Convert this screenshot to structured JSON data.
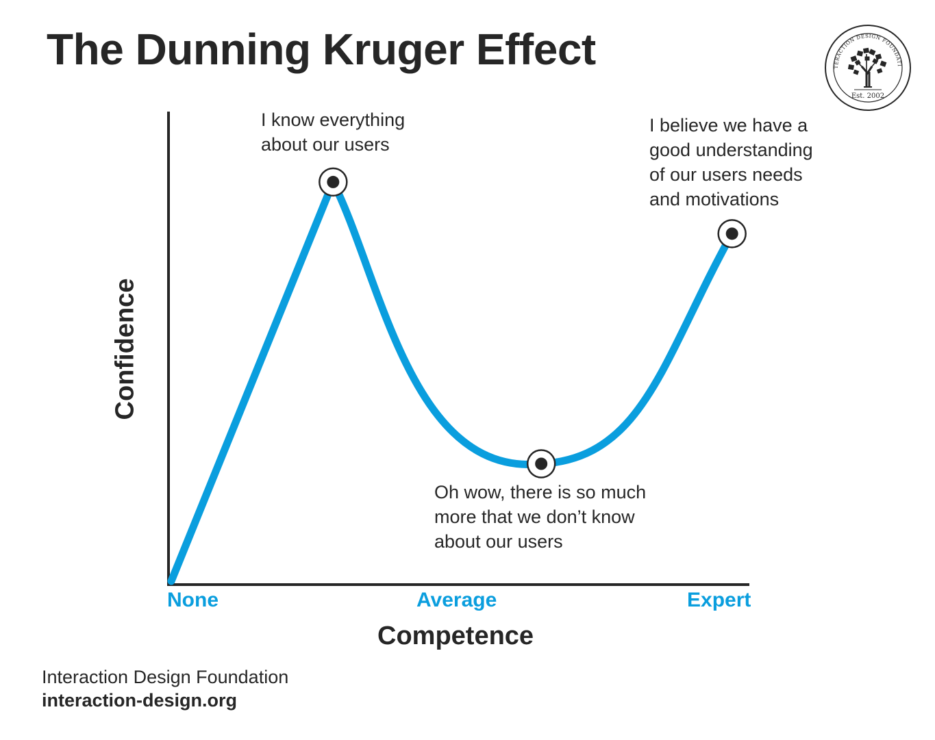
{
  "title": "The Dunning Kruger Effect",
  "logo": {
    "ring_text": "INTERACTION DESIGN FOUNDATION",
    "est_text": "Est. 2002"
  },
  "chart_data": {
    "type": "line",
    "xlabel": "Competence",
    "ylabel": "Confidence",
    "x_ticks": [
      "None",
      "Average",
      "Expert"
    ],
    "xlim": [
      0,
      100
    ],
    "ylim": [
      0,
      100
    ],
    "grid": false,
    "curve_color": "#0a9ede",
    "axis_color": "#262626",
    "points": [
      {
        "x": 0,
        "y": 0
      },
      {
        "x": 28,
        "y": 85
      },
      {
        "x": 64,
        "y": 25
      },
      {
        "x": 97,
        "y": 74
      }
    ],
    "annotations": [
      {
        "id": "peak",
        "x": 28,
        "y": 85,
        "text": "I know everything\nabout our users"
      },
      {
        "id": "valley",
        "x": 64,
        "y": 25,
        "text": "Oh wow, there is so much\nmore that we don’t know\nabout our users"
      },
      {
        "id": "expert",
        "x": 97,
        "y": 74,
        "text": "I believe we have a\ngood understanding\nof our users needs\nand motivations"
      }
    ]
  },
  "footer": {
    "organization": "Interaction Design Foundation",
    "url": "interaction-design.org"
  }
}
